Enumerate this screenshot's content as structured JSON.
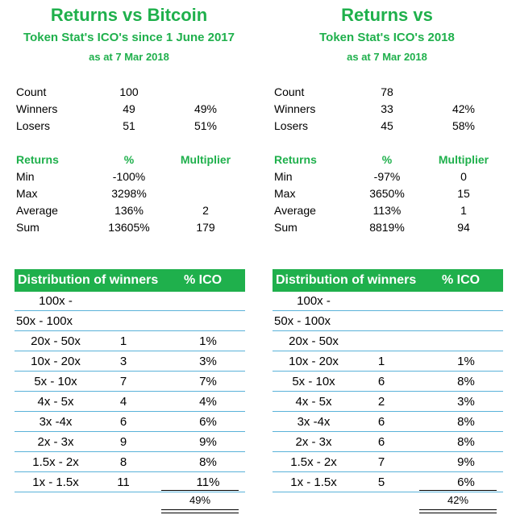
{
  "left": {
    "title": "Returns vs Bitcoin",
    "subtitle": "Token Stat's ICO's since 1 June 2017",
    "date": "as at 7 Mar 2018",
    "count_label": "Count",
    "count": "100",
    "winners_label": "Winners",
    "winners": "49",
    "winners_pct": "49%",
    "losers_label": "Losers",
    "losers": "51",
    "losers_pct": "51%",
    "returns_header": "Returns",
    "pct_header": "%",
    "multiplier_header": "Multiplier",
    "min_label": "Min",
    "min_pct": "-100%",
    "min_mult": "",
    "max_label": "Max",
    "max_pct": "3298%",
    "max_mult": "",
    "avg_label": "Average",
    "avg_pct": "136%",
    "avg_mult": "2",
    "sum_label": "Sum",
    "sum_pct": "13605%",
    "sum_mult": "179",
    "dist_header": "Distribution of winners",
    "dist_pct_header": "% ICO",
    "dist_rows": [
      {
        "range": "100x -",
        "count": "",
        "pct": ""
      },
      {
        "range": "50x - 100x",
        "count": "",
        "pct": ""
      },
      {
        "range": "20x - 50x",
        "count": "1",
        "pct": "1%"
      },
      {
        "range": "10x - 20x",
        "count": "3",
        "pct": "3%"
      },
      {
        "range": "5x - 10x",
        "count": "7",
        "pct": "7%"
      },
      {
        "range": "4x - 5x",
        "count": "4",
        "pct": "4%"
      },
      {
        "range": "3x -4x",
        "count": "6",
        "pct": "6%"
      },
      {
        "range": "2x - 3x",
        "count": "9",
        "pct": "9%"
      },
      {
        "range": "1.5x - 2x",
        "count": "8",
        "pct": "8%"
      },
      {
        "range": "1x - 1.5x",
        "count": "11",
        "pct": "11%"
      }
    ],
    "total_pct": "49%"
  },
  "right": {
    "title": "Returns vs",
    "subtitle": "Token Stat's ICO's 2018",
    "date": "as at 7 Mar 2018",
    "count_label": "Count",
    "count": "78",
    "winners_label": "Winners",
    "winners": "33",
    "winners_pct": "42%",
    "losers_label": "Losers",
    "losers": "45",
    "losers_pct": "58%",
    "returns_header": "Returns",
    "pct_header": "%",
    "multiplier_header": "Multiplier",
    "min_label": "Min",
    "min_pct": "-97%",
    "min_mult": "0",
    "max_label": "Max",
    "max_pct": "3650%",
    "max_mult": "15",
    "avg_label": "Average",
    "avg_pct": "113%",
    "avg_mult": "1",
    "sum_label": "Sum",
    "sum_pct": "8819%",
    "sum_mult": "94",
    "dist_header": "Distribution of winners",
    "dist_pct_header": "% ICO",
    "dist_rows": [
      {
        "range": "100x -",
        "count": "",
        "pct": ""
      },
      {
        "range": "50x - 100x",
        "count": "",
        "pct": ""
      },
      {
        "range": "20x - 50x",
        "count": "",
        "pct": ""
      },
      {
        "range": "10x - 20x",
        "count": "1",
        "pct": "1%"
      },
      {
        "range": "5x - 10x",
        "count": "6",
        "pct": "8%"
      },
      {
        "range": "4x - 5x",
        "count": "2",
        "pct": "3%"
      },
      {
        "range": "3x -4x",
        "count": "6",
        "pct": "8%"
      },
      {
        "range": "2x - 3x",
        "count": "6",
        "pct": "8%"
      },
      {
        "range": "1.5x - 2x",
        "count": "7",
        "pct": "9%"
      },
      {
        "range": "1x - 1.5x",
        "count": "5",
        "pct": "6%"
      }
    ],
    "total_pct": "42%"
  }
}
